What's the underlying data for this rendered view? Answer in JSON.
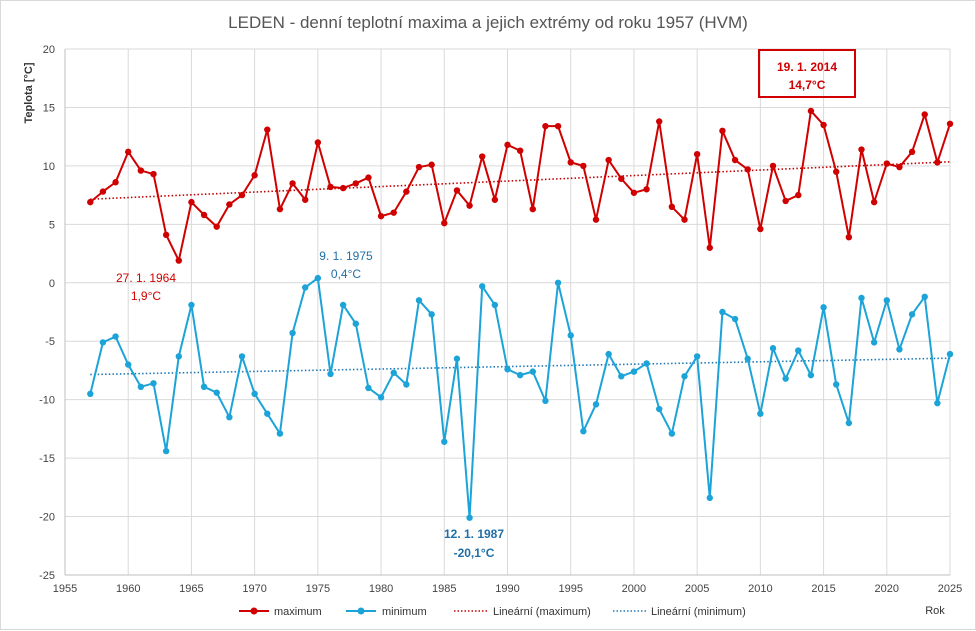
{
  "chart_data": {
    "type": "line",
    "title": "LEDEN - denní teplotní maxima a jejich extrémy od roku 1957 (HVM)",
    "xlabel": "Rok",
    "ylabel": "Teplota [°C]",
    "xlim": [
      1955,
      2025
    ],
    "ylim": [
      -25,
      20
    ],
    "x_ticks": [
      1955,
      1960,
      1965,
      1970,
      1975,
      1980,
      1985,
      1990,
      1995,
      2000,
      2005,
      2010,
      2015,
      2020,
      2025
    ],
    "y_ticks": [
      -25,
      -20,
      -15,
      -10,
      -5,
      0,
      5,
      10,
      15,
      20
    ],
    "grid": "vertical and horizontal",
    "legend_position": "bottom",
    "colors": {
      "maximum": "#d00000",
      "minimum": "#1ca3d8",
      "trend_maximum": "#c00000",
      "trend_minimum": "#1f78b4",
      "ann_min_year": "#1f6fa6"
    },
    "x": [
      1957,
      1958,
      1959,
      1960,
      1961,
      1962,
      1963,
      1964,
      1965,
      1966,
      1967,
      1968,
      1969,
      1970,
      1971,
      1972,
      1973,
      1974,
      1975,
      1976,
      1977,
      1978,
      1979,
      1980,
      1981,
      1982,
      1983,
      1984,
      1985,
      1986,
      1987,
      1988,
      1989,
      1990,
      1991,
      1992,
      1993,
      1994,
      1995,
      1996,
      1997,
      1998,
      1999,
      2000,
      2001,
      2002,
      2003,
      2004,
      2005,
      2006,
      2007,
      2008,
      2009,
      2010,
      2011,
      2012,
      2013,
      2014,
      2015,
      2016,
      2017,
      2018,
      2019,
      2020,
      2021,
      2022,
      2023,
      2024,
      2025
    ],
    "series": [
      {
        "name": "maximum",
        "values": [
          6.9,
          7.8,
          8.6,
          11.2,
          9.6,
          9.3,
          4.1,
          1.9,
          6.9,
          5.8,
          4.8,
          6.7,
          7.5,
          9.2,
          13.1,
          6.3,
          8.5,
          7.1,
          12.0,
          8.2,
          8.1,
          8.5,
          9.0,
          5.7,
          6.0,
          7.8,
          9.9,
          10.1,
          5.1,
          7.9,
          6.6,
          10.8,
          7.1,
          11.8,
          11.3,
          6.3,
          13.4,
          13.4,
          10.3,
          10.0,
          5.4,
          10.5,
          8.9,
          7.7,
          8.0,
          13.8,
          6.5,
          5.4,
          11.0,
          3.0,
          13.0,
          10.5,
          9.7,
          4.6,
          10.0,
          7.0,
          7.5,
          14.7,
          13.5,
          9.5,
          3.9,
          11.4,
          6.9,
          10.2,
          9.9,
          11.2,
          14.4,
          10.3,
          13.6
        ]
      },
      {
        "name": "minimum",
        "values": [
          -9.5,
          -5.1,
          -4.6,
          -7.0,
          -8.9,
          -8.6,
          -14.4,
          -6.3,
          -1.9,
          -8.9,
          -9.4,
          -11.5,
          -6.3,
          -9.5,
          -11.2,
          -12.9,
          -4.3,
          -0.4,
          0.4,
          -7.8,
          -1.9,
          -3.5,
          -9.0,
          -9.8,
          -7.7,
          -8.7,
          -1.5,
          -2.7,
          -13.6,
          -6.5,
          -20.1,
          -0.3,
          -1.9,
          -7.4,
          -7.9,
          -7.6,
          -10.1,
          0.0,
          -4.5,
          -12.7,
          -10.4,
          -6.1,
          -8.0,
          -7.6,
          -6.9,
          -10.8,
          -12.9,
          -8.0,
          -6.3,
          -18.4,
          -2.5,
          -3.1,
          -6.5,
          -11.2,
          -5.6,
          -8.2,
          -5.8,
          -7.9,
          -2.1,
          -8.7,
          -12.0,
          -1.3,
          -5.1,
          -1.5,
          -5.7,
          -2.7,
          -1.2,
          -10.3,
          -6.1
        ]
      }
    ],
    "trends": [
      {
        "name": "Lineární (maximum)",
        "x": [
          1957,
          2025
        ],
        "values": [
          7.15,
          10.35
        ]
      },
      {
        "name": "Lineární (minimum)",
        "x": [
          1957,
          2025
        ],
        "values": [
          -7.85,
          -6.45
        ]
      }
    ],
    "legend": [
      {
        "label": "maximum"
      },
      {
        "label": "minimum"
      },
      {
        "label": "Lineární (maximum)"
      },
      {
        "label": "Lineární (minimum)"
      }
    ],
    "annotations": {
      "max_record": {
        "date": "19. 1. 2014",
        "value": "14,7°C"
      },
      "max_low": {
        "date": "27. 1. 1964",
        "value": "1,9°C"
      },
      "min_high": {
        "date": "9. 1. 1975",
        "value": "0,4°C"
      },
      "min_record": {
        "date": "12. 1. 1987",
        "value": "-20,1°C"
      }
    }
  }
}
